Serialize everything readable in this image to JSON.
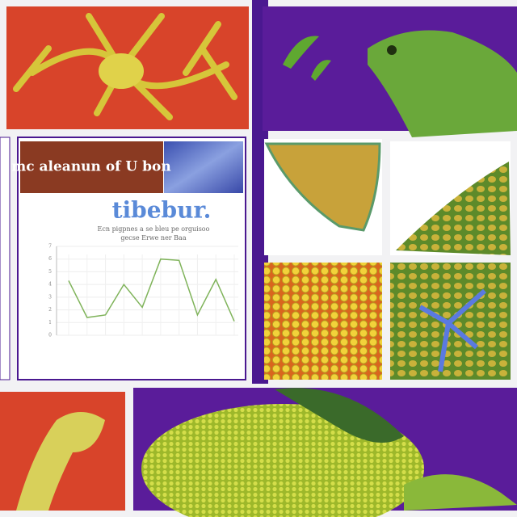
{
  "header_title": "mc aleanun of U bon",
  "brand": "tibebur.",
  "subtitle_lines": [
    "Ecn pigpnes a se bleu pe orguisoo",
    "gecse Erwe ner Baa"
  ],
  "chart_data": {
    "type": "line",
    "color": "#7fb35a",
    "categories": [
      null,
      null,
      null,
      null,
      null,
      null,
      null,
      null,
      null,
      null
    ],
    "values": [
      4.3,
      1.4,
      1.6,
      4.0,
      2.2,
      6.0,
      5.9,
      1.6,
      4.4,
      1.1
    ],
    "ylim": [
      0,
      7
    ],
    "yticks": [
      0,
      1,
      2,
      3,
      4,
      5,
      6,
      7
    ],
    "grid": true
  }
}
